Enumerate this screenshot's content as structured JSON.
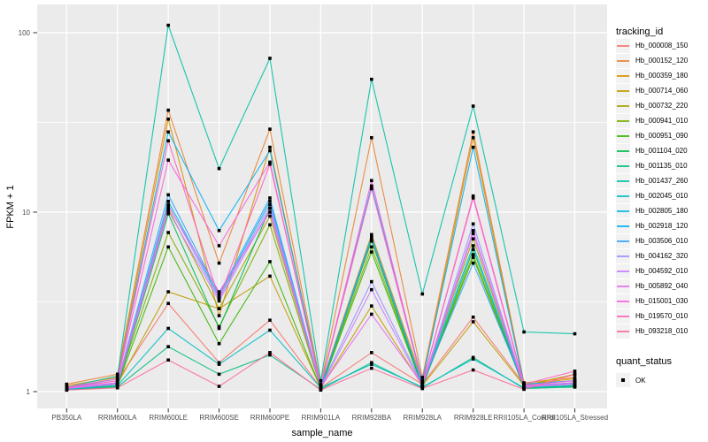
{
  "chart_data": {
    "type": "line",
    "xlabel": "sample_name",
    "ylabel": "FPKM + 1",
    "y_scale": "log10",
    "y_ticks": [
      1,
      10,
      100
    ],
    "y_tick_labels": [
      "1",
      "10",
      "100"
    ],
    "y_minor_ticks": [
      3.1623,
      31.623
    ],
    "ylim": [
      0.81,
      143
    ],
    "grid": "on",
    "panel_bg": "#EBEBEB",
    "grid_color": "#FFFFFF",
    "point_color": "#000000",
    "legend_title": "tracking_id",
    "legend_position": "right",
    "x_categories": [
      "PB350LA",
      "RRIM600LA",
      "RRIM600LE",
      "RRIM600SE",
      "RRIM600PE",
      "RRIM901LA",
      "RRIM928BA",
      "RRIM928LA",
      "RRIM928LE",
      "RRII105LA_Control",
      "RRII105LA_Stressed"
    ],
    "series": [
      {
        "name": "Hb_000008_150",
        "color": "#F8766D",
        "values": [
          1.05,
          1.15,
          3.1,
          1.45,
          2.5,
          1.05,
          1.65,
          1.1,
          2.6,
          1.1,
          1.15
        ]
      },
      {
        "name": "Hb_000152_120",
        "color": "#EA8331",
        "values": [
          1.1,
          1.25,
          37.0,
          5.2,
          29.0,
          1.1,
          26.0,
          1.2,
          28.0,
          1.12,
          1.2
        ]
      },
      {
        "name": "Hb_000359_180",
        "color": "#D89000",
        "values": [
          1.08,
          1.2,
          33.0,
          2.65,
          23.0,
          1.08,
          7.5,
          1.15,
          26.0,
          1.1,
          1.18
        ]
      },
      {
        "name": "Hb_000714_060",
        "color": "#C09B00",
        "values": [
          1.05,
          1.1,
          3.6,
          2.9,
          4.4,
          1.05,
          3.0,
          1.08,
          2.45,
          1.08,
          1.25
        ]
      },
      {
        "name": "Hb_000732_220",
        "color": "#A3A500",
        "values": [
          1.04,
          1.12,
          10.5,
          2.9,
          9.5,
          1.06,
          6.9,
          1.1,
          7.1,
          1.07,
          1.12
        ]
      },
      {
        "name": "Hb_000941_010",
        "color": "#7CAE00",
        "values": [
          1.03,
          1.1,
          7.7,
          2.3,
          8.5,
          1.05,
          6.4,
          1.08,
          5.8,
          1.06,
          1.1
        ]
      },
      {
        "name": "Hb_000951_090",
        "color": "#39B600",
        "values": [
          1.04,
          1.08,
          6.4,
          1.85,
          5.3,
          1.04,
          6.0,
          1.07,
          5.6,
          1.05,
          1.08
        ]
      },
      {
        "name": "Hb_001104_020",
        "color": "#00BB4E",
        "values": [
          1.03,
          1.07,
          9.8,
          2.25,
          10.5,
          1.04,
          7.0,
          1.06,
          6.2,
          1.05,
          1.07
        ]
      },
      {
        "name": "Hb_001135_010",
        "color": "#00BF7D",
        "values": [
          1.02,
          1.06,
          1.78,
          1.25,
          1.6,
          1.03,
          1.45,
          1.05,
          1.55,
          1.04,
          1.06
        ]
      },
      {
        "name": "Hb_001437_260",
        "color": "#00C1A3",
        "values": [
          1.06,
          1.22,
          110.0,
          17.5,
          72.0,
          1.15,
          55.0,
          3.5,
          39.0,
          2.15,
          2.1
        ]
      },
      {
        "name": "Hb_002045_010",
        "color": "#00BFC4",
        "values": [
          1.03,
          1.08,
          2.25,
          1.42,
          2.2,
          1.05,
          1.42,
          1.06,
          1.52,
          1.05,
          1.08
        ]
      },
      {
        "name": "Hb_002805_180",
        "color": "#00BAE0",
        "values": [
          1.04,
          1.1,
          11.5,
          3.4,
          11.5,
          1.06,
          7.3,
          1.1,
          6.5,
          1.07,
          1.1
        ]
      },
      {
        "name": "Hb_002918_120",
        "color": "#00B0F6",
        "values": [
          1.05,
          1.18,
          28.0,
          7.9,
          22.0,
          1.08,
          14.0,
          1.15,
          23.0,
          1.1,
          1.15
        ]
      },
      {
        "name": "Hb_003506_010",
        "color": "#35A2FF",
        "values": [
          1.04,
          1.12,
          12.5,
          3.5,
          12.0,
          1.06,
          7.2,
          1.1,
          5.2,
          1.08,
          1.12
        ]
      },
      {
        "name": "Hb_004162_320",
        "color": "#9590FF",
        "values": [
          1.05,
          1.1,
          11.0,
          3.3,
          11.0,
          1.06,
          4.1,
          1.09,
          8.6,
          1.07,
          1.1
        ]
      },
      {
        "name": "Hb_004592_010",
        "color": "#C77CFF",
        "values": [
          1.04,
          1.1,
          10.2,
          3.2,
          10.5,
          1.05,
          3.7,
          1.08,
          7.6,
          1.06,
          1.1
        ]
      },
      {
        "name": "Hb_005892_040",
        "color": "#E76BF3",
        "values": [
          1.05,
          1.12,
          10.8,
          3.6,
          10.0,
          1.06,
          2.7,
          1.1,
          7.9,
          1.07,
          1.12
        ]
      },
      {
        "name": "Hb_015001_030",
        "color": "#FA62DB",
        "values": [
          1.05,
          1.15,
          19.5,
          6.5,
          19.0,
          1.07,
          15.0,
          1.12,
          12.0,
          1.08,
          1.15
        ]
      },
      {
        "name": "Hb_019570_010",
        "color": "#FF62BC",
        "values": [
          1.06,
          1.18,
          25.0,
          3.3,
          18.5,
          1.08,
          13.5,
          1.12,
          12.3,
          1.1,
          1.3
        ]
      },
      {
        "name": "Hb_093218_010",
        "color": "#FF6A98",
        "values": [
          1.02,
          1.05,
          1.5,
          1.07,
          1.65,
          1.02,
          1.35,
          1.04,
          1.32,
          1.03,
          1.25
        ]
      }
    ],
    "quant_legend": {
      "title": "quant_status",
      "items": [
        {
          "label": "OK",
          "shape": "square",
          "color": "#000000"
        }
      ]
    }
  }
}
